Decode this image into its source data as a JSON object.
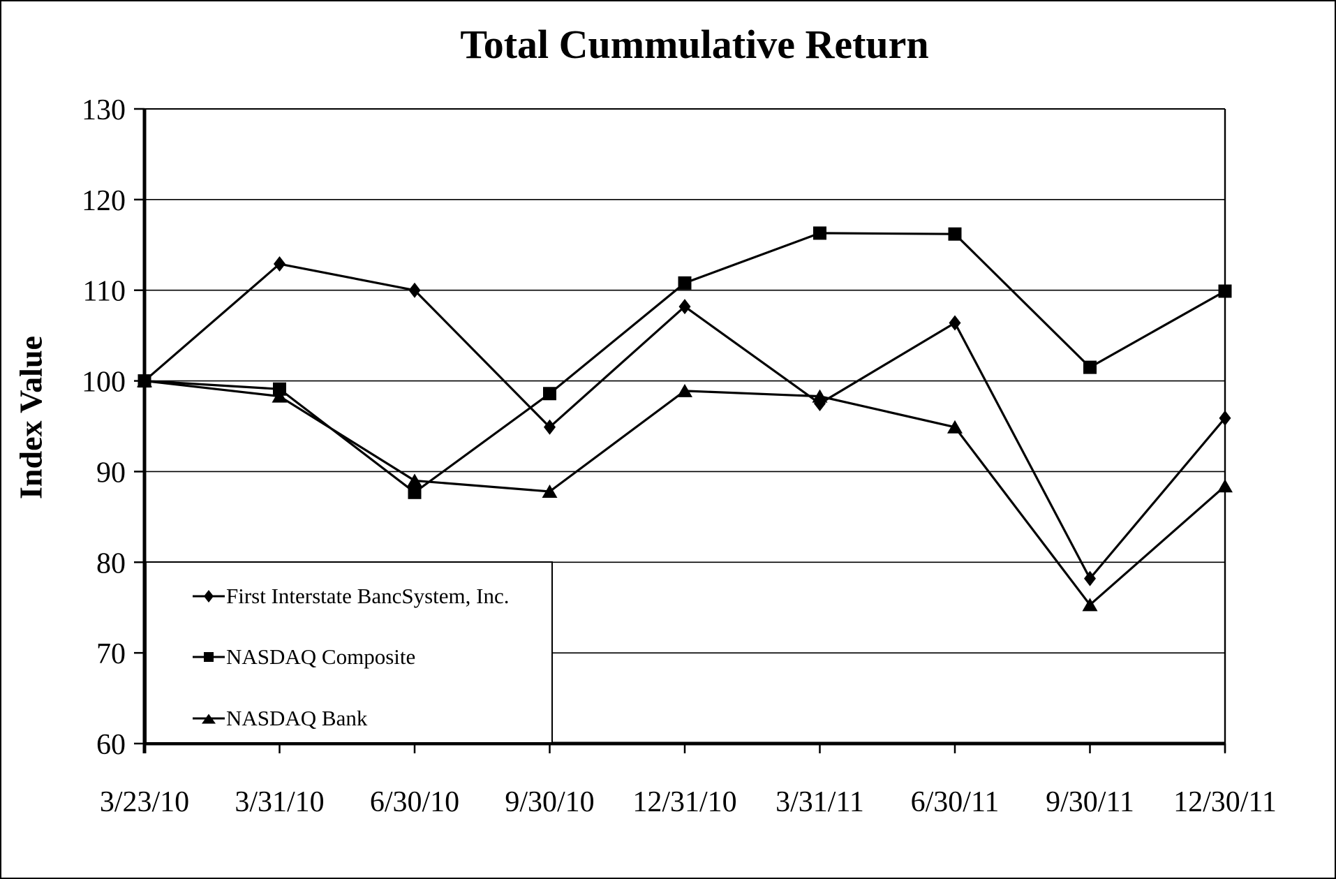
{
  "chart_data": {
    "type": "line",
    "title": "Total Cummulative Return",
    "ylabel": "Index Value",
    "xlabel": "",
    "categories": [
      "3/23/10",
      "3/31/10",
      "6/30/10",
      "9/30/10",
      "12/31/10",
      "3/31/11",
      "6/30/11",
      "9/30/11",
      "12/30/11"
    ],
    "series": [
      {
        "name": "First Interstate BancSystem, Inc.",
        "marker": "diamond",
        "values": [
          100.0,
          112.9,
          110.0,
          94.9,
          108.2,
          97.5,
          106.4,
          78.2,
          95.9
        ]
      },
      {
        "name": "NASDAQ Composite",
        "marker": "square",
        "values": [
          100.0,
          99.1,
          87.7,
          98.6,
          110.8,
          116.3,
          116.2,
          101.5,
          109.9
        ]
      },
      {
        "name": "NASDAQ Bank",
        "marker": "triangle",
        "values": [
          100.0,
          98.3,
          89.0,
          87.8,
          98.9,
          98.3,
          94.9,
          75.3,
          88.4
        ]
      }
    ],
    "ylim": [
      60,
      130
    ],
    "yticks": [
      60,
      70,
      80,
      90,
      100,
      110,
      120,
      130
    ],
    "grid": true,
    "legend_position": "inside-bottom-left",
    "line_color": "#000000",
    "background": "#ffffff"
  }
}
